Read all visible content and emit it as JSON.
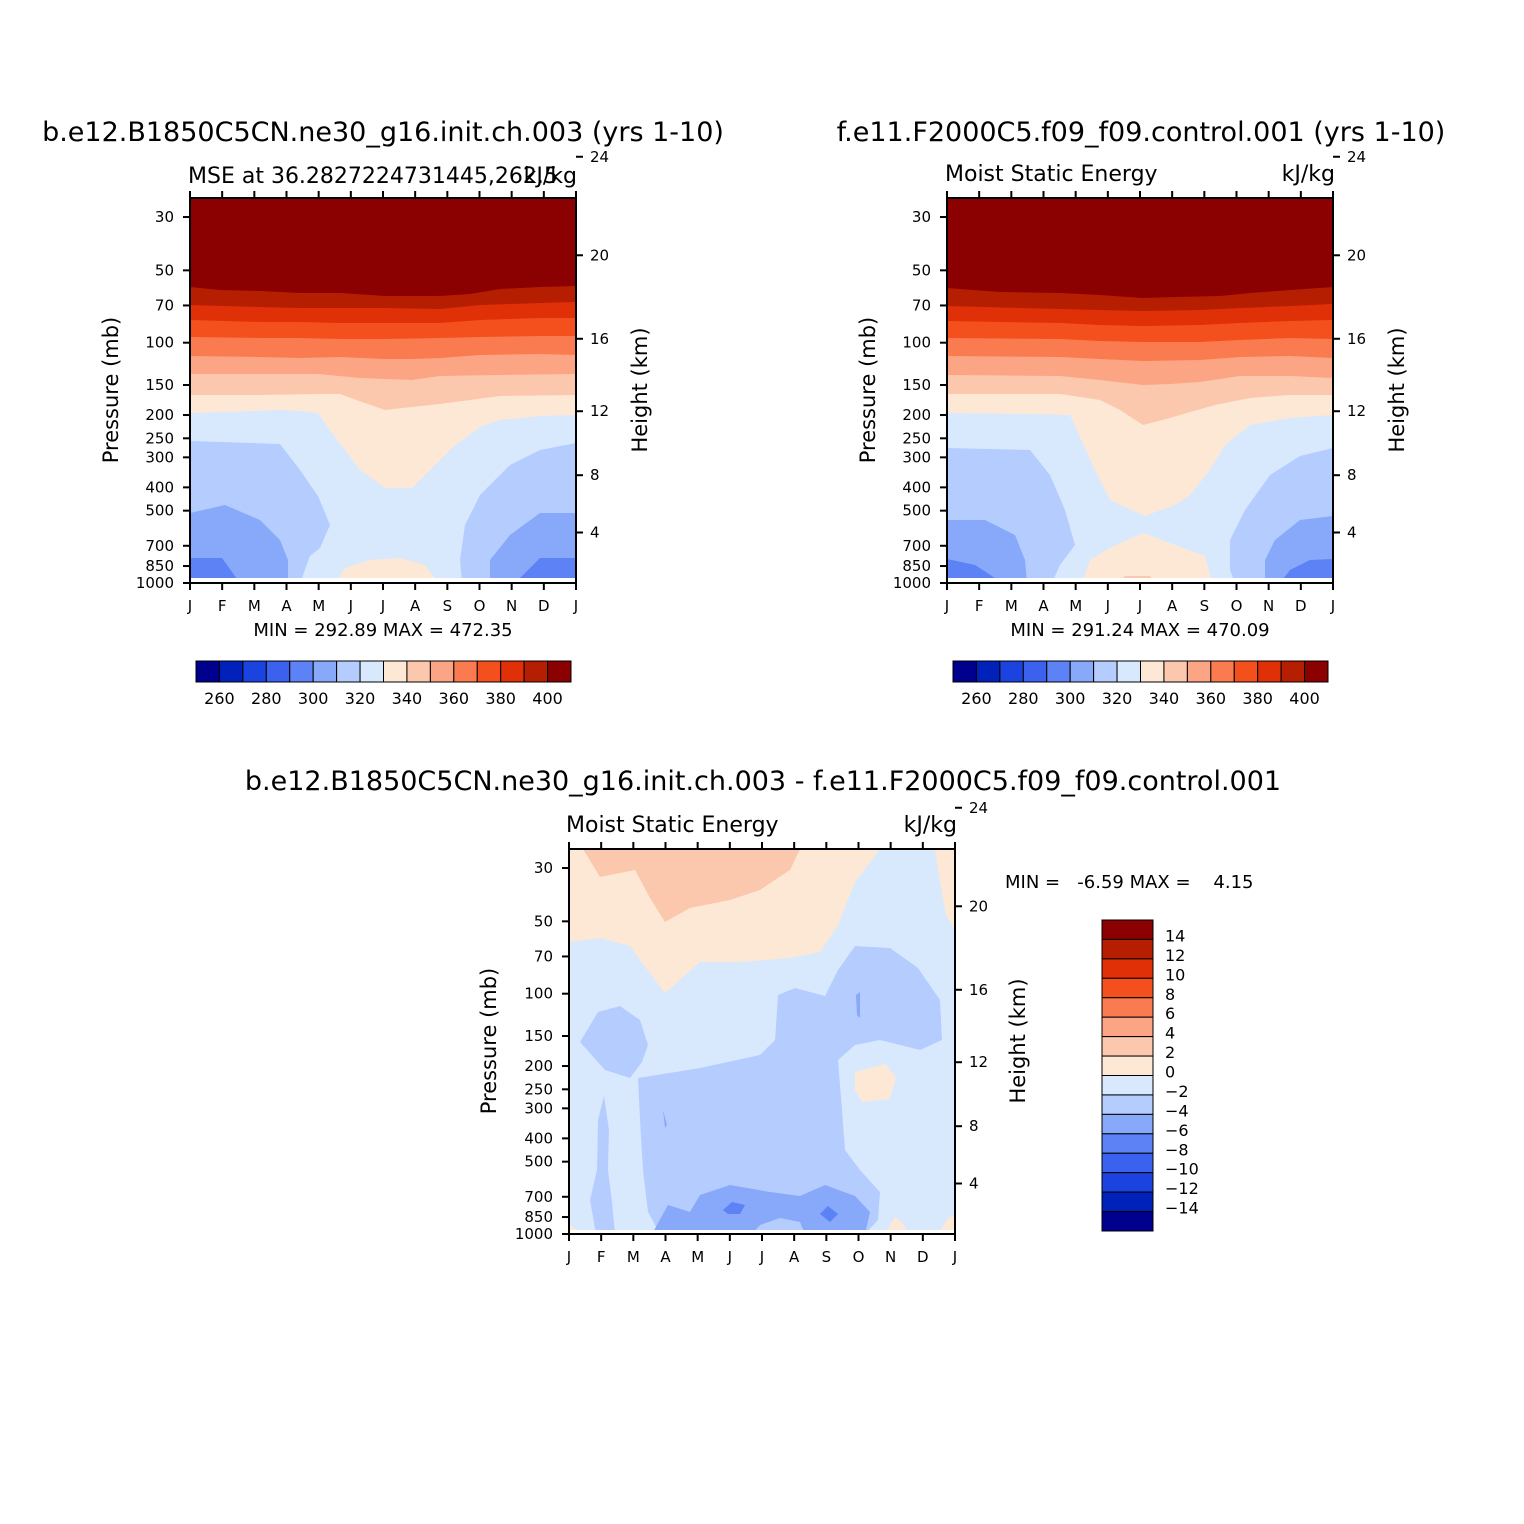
{
  "figure": {
    "panel_a": {
      "title": "b.e12.B1850C5CN.ne30_g16.init.ch.003 (yrs 1-10)",
      "left_string": "MSE at 36.2827224731445,262.5",
      "right_string": "kJ/kg",
      "ylabel_left": "Pressure (mb)",
      "ylabel_right": "Height (km)",
      "min_max": "MIN = 292.89 MAX = 472.35"
    },
    "panel_b": {
      "title": "f.e11.F2000C5.f09_f09.control.001 (yrs 1-10)",
      "left_string": "Moist Static Energy",
      "right_string": "kJ/kg",
      "ylabel_left": "Pressure (mb)",
      "ylabel_right": "Height (km)",
      "min_max": "MIN = 291.24 MAX = 470.09"
    },
    "panel_c": {
      "title": "b.e12.B1850C5CN.ne30_g16.init.ch.003 - f.e11.F2000C5.f09_f09.control.001",
      "left_string": "Moist Static Energy",
      "right_string": "kJ/kg",
      "ylabel_left": "Pressure (mb)",
      "ylabel_right": "Height (km)",
      "min_max": "MIN =   -6.59 MAX =    4.15"
    }
  },
  "chart_data": [
    {
      "type": "heatmap",
      "panel": "panel_a",
      "x_tick_labels": [
        "J",
        "F",
        "M",
        "A",
        "M",
        "J",
        "J",
        "A",
        "S",
        "O",
        "N",
        "D",
        "J"
      ],
      "y_tick_labels_pressure": [
        "30",
        "50",
        "70",
        "100",
        "150",
        "200",
        "250",
        "300",
        "400",
        "500",
        "700",
        "850",
        "1000"
      ],
      "y_right_tick_labels_km": [
        "24",
        "20",
        "16",
        "12",
        "8",
        "4"
      ],
      "yscale": "log",
      "ylim_mb": [
        1000,
        25
      ],
      "contour_levels": [
        255,
        260,
        265,
        270,
        275,
        280,
        285,
        290,
        295,
        300,
        305,
        310,
        315,
        320,
        325,
        330,
        335,
        340,
        345,
        350,
        355,
        360,
        365,
        370,
        375,
        380,
        385,
        390,
        395,
        400,
        405
      ],
      "colorbar_labels": [
        "260",
        "280",
        "300",
        "320",
        "340",
        "360",
        "380",
        "400"
      ],
      "colorbar_colors": [
        "#00008f",
        "#0022bb",
        "#1a43e0",
        "#3a62ee",
        "#5c82f5",
        "#88a8fa",
        "#b5cdfe",
        "#d8e9fe",
        "#fde8d6",
        "#fcc8ad",
        "#fba585",
        "#fa7b4f",
        "#f4501e",
        "#e03008",
        "#b51e00",
        "#8b0000"
      ],
      "min": 292.89,
      "max": 472.35
    },
    {
      "type": "heatmap",
      "panel": "panel_b",
      "x_tick_labels": [
        "J",
        "F",
        "M",
        "A",
        "M",
        "J",
        "J",
        "A",
        "S",
        "O",
        "N",
        "D",
        "J"
      ],
      "y_tick_labels_pressure": [
        "30",
        "50",
        "70",
        "100",
        "150",
        "200",
        "250",
        "300",
        "400",
        "500",
        "700",
        "850",
        "1000"
      ],
      "y_right_tick_labels_km": [
        "24",
        "20",
        "16",
        "12",
        "8",
        "4"
      ],
      "yscale": "log",
      "ylim_mb": [
        1000,
        25
      ],
      "colorbar_labels": [
        "260",
        "280",
        "300",
        "320",
        "340",
        "360",
        "380",
        "400"
      ],
      "colorbar_colors": [
        "#00008f",
        "#0022bb",
        "#1a43e0",
        "#3a62ee",
        "#5c82f5",
        "#88a8fa",
        "#b5cdfe",
        "#d8e9fe",
        "#fde8d6",
        "#fcc8ad",
        "#fba585",
        "#fa7b4f",
        "#f4501e",
        "#e03008",
        "#b51e00",
        "#8b0000"
      ],
      "min": 291.24,
      "max": 470.09
    },
    {
      "type": "heatmap",
      "panel": "panel_c",
      "x_tick_labels": [
        "J",
        "F",
        "M",
        "A",
        "M",
        "J",
        "J",
        "A",
        "S",
        "O",
        "N",
        "D",
        "J"
      ],
      "y_tick_labels_pressure": [
        "30",
        "50",
        "70",
        "100",
        "150",
        "200",
        "250",
        "300",
        "400",
        "500",
        "700",
        "850",
        "1000"
      ],
      "y_right_tick_labels_km": [
        "24",
        "20",
        "16",
        "12",
        "8",
        "4"
      ],
      "yscale": "log",
      "ylim_mb": [
        1000,
        25
      ],
      "contour_levels": [
        -14,
        -12,
        -10,
        -8,
        -6,
        -4,
        -2,
        0,
        2,
        4,
        6,
        8,
        10,
        12,
        14
      ],
      "colorbar_labels": [
        "14",
        "12",
        "10",
        "8",
        "6",
        "4",
        "2",
        "0",
        "−2",
        "−4",
        "−6",
        "−8",
        "−10",
        "−12",
        "−14"
      ],
      "colorbar_colors": [
        "#8b0000",
        "#b51e00",
        "#e03008",
        "#f4501e",
        "#fa7b4f",
        "#fba585",
        "#fcc8ad",
        "#fde8d6",
        "#d8e9fe",
        "#b5cdfe",
        "#88a8fa",
        "#5c82f5",
        "#3a62ee",
        "#1a43e0",
        "#0022bb",
        "#00008f"
      ],
      "min": -6.59,
      "max": 4.15
    }
  ]
}
